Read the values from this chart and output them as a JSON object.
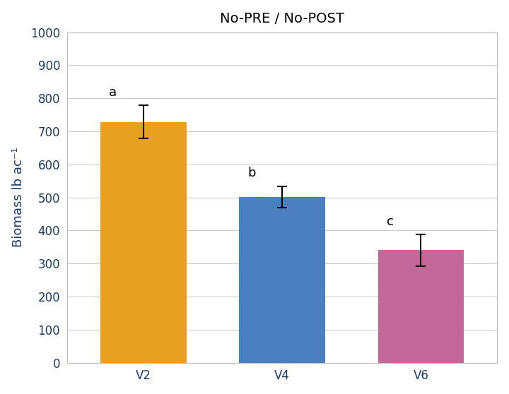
{
  "title": "No-PRE / No-POST",
  "categories": [
    "V2",
    "V4",
    "V6"
  ],
  "values": [
    728,
    502,
    340
  ],
  "errors": [
    50,
    32,
    48
  ],
  "bar_colors": [
    "#E8A020",
    "#4C7FC0",
    "#C2699A"
  ],
  "letters": [
    "a",
    "b",
    "c"
  ],
  "ylabel": "Biomass lb ac⁻¹",
  "ylim": [
    0,
    1000
  ],
  "yticks": [
    0,
    100,
    200,
    300,
    400,
    500,
    600,
    700,
    800,
    900,
    1000
  ],
  "background_color": "#FFFFFF",
  "grid_color": "#CCCCCC",
  "text_color": "#1A3A6B",
  "title_fontsize": 14,
  "label_fontsize": 13,
  "tick_fontsize": 12,
  "letter_fontsize": 13,
  "bar_width": 0.62,
  "xlim": [
    -0.55,
    2.55
  ]
}
